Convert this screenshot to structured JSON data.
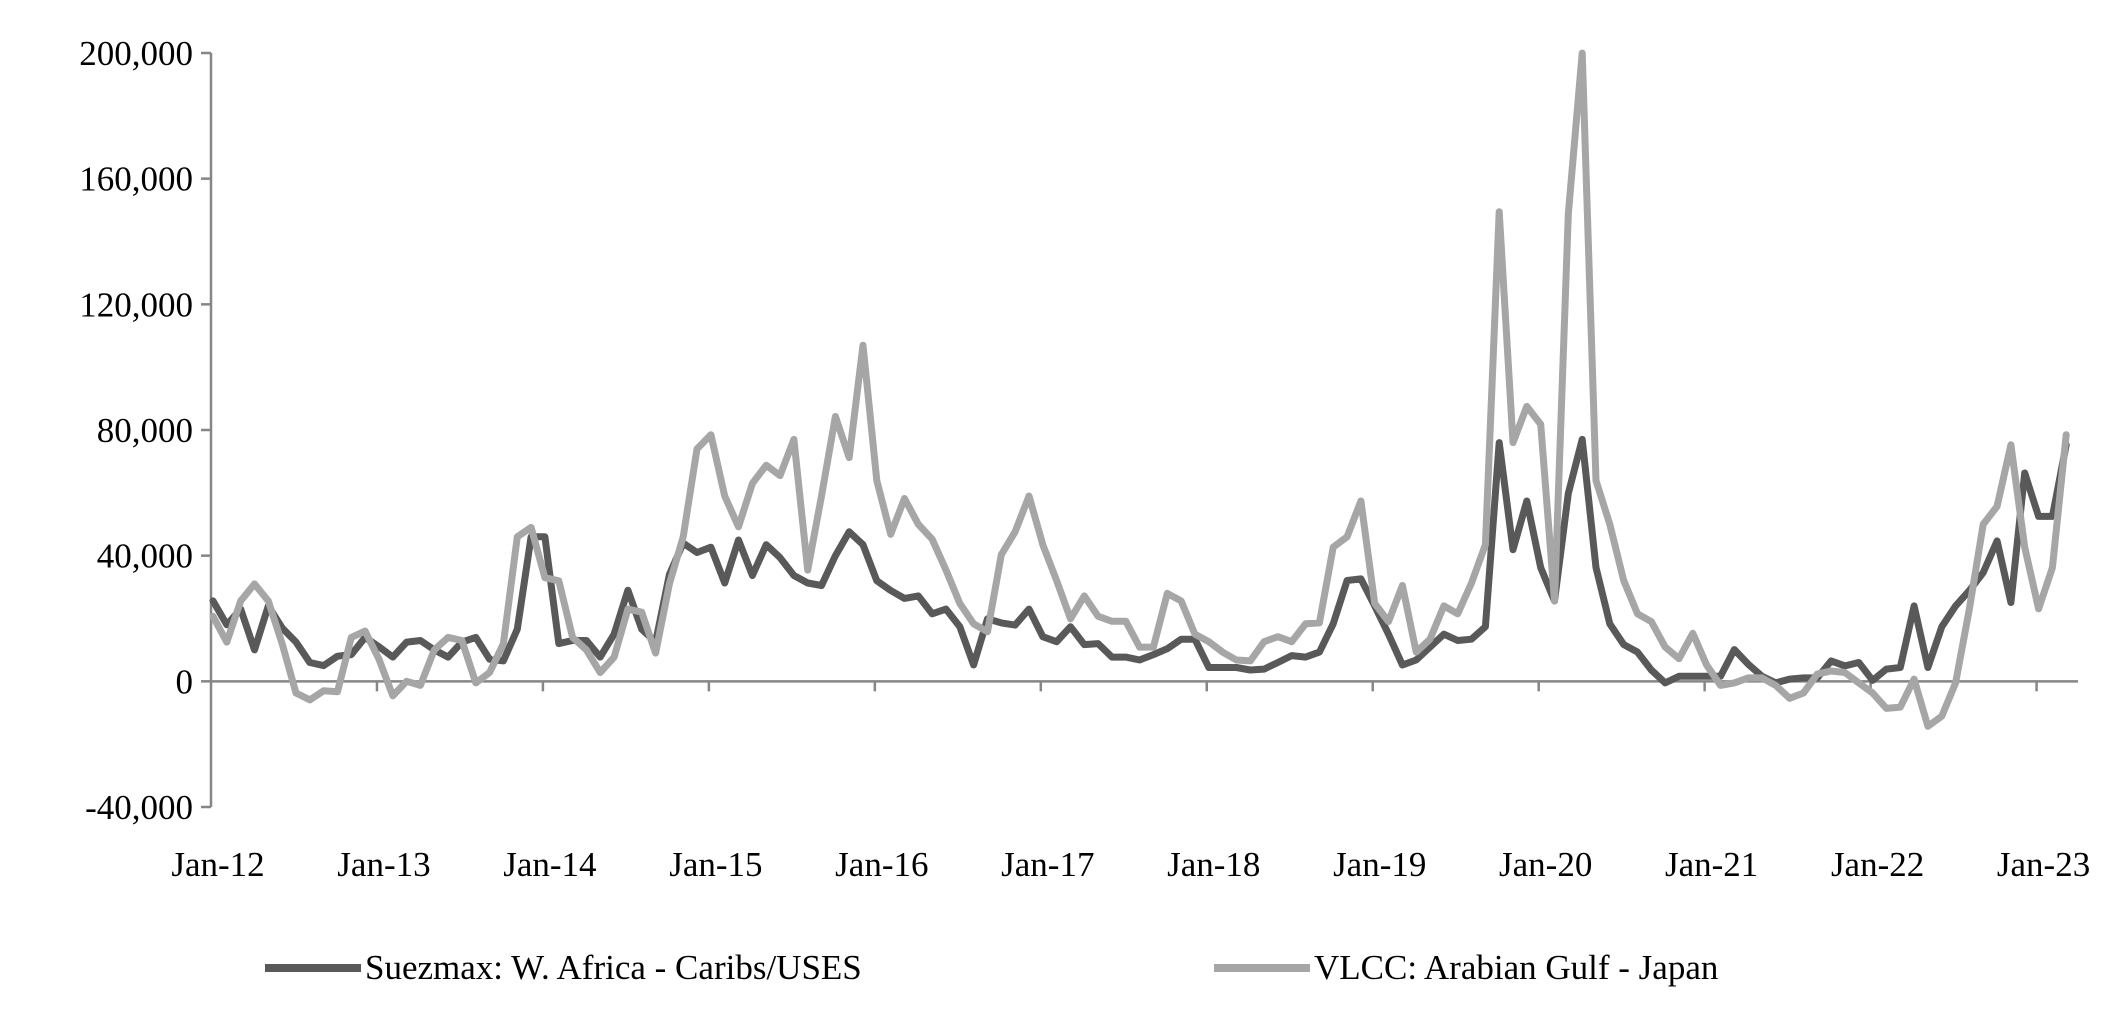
{
  "chart_data": {
    "type": "line",
    "title": "",
    "xlabel": "",
    "ylabel": "",
    "x_start": "Jan-12",
    "x_frequency": "monthly",
    "x_tick_labels": [
      "Jan-12",
      "Jan-13",
      "Jan-14",
      "Jan-15",
      "Jan-16",
      "Jan-17",
      "Jan-18",
      "Jan-19",
      "Jan-20",
      "Jan-21",
      "Jan-22",
      "Jan-23"
    ],
    "y_tick_labels": [
      "-40,000",
      "0",
      "40,000",
      "80,000",
      "120,000",
      "160,000",
      "200,000"
    ],
    "y_ticks": [
      -40000,
      0,
      40000,
      80000,
      120000,
      160000,
      200000
    ],
    "ylim": [
      -40000,
      200000
    ],
    "grid": false,
    "legend_position": "bottom",
    "series": [
      {
        "name": "Suezmax: W. Africa - Caribs/USES",
        "color": "#595959",
        "values": [
          25600,
          18000,
          23000,
          10000,
          24000,
          17000,
          12500,
          6000,
          5000,
          8000,
          8500,
          14000,
          11000,
          7700,
          12500,
          13000,
          10000,
          7700,
          12500,
          14000,
          7000,
          6500,
          16600,
          46000,
          46000,
          12000,
          13000,
          13000,
          7700,
          15000,
          29000,
          16600,
          12500,
          34000,
          44000,
          41000,
          42700,
          31300,
          45000,
          33700,
          43500,
          39400,
          33700,
          31300,
          30500,
          40000,
          47600,
          43500,
          32000,
          28900,
          26400,
          27200,
          21500,
          23000,
          17400,
          5200,
          19900,
          18600,
          17900,
          23000,
          14200,
          12600,
          17400,
          11700,
          12000,
          7700,
          7700,
          6800,
          8500,
          10400,
          13400,
          13400,
          4400,
          4400,
          4400,
          3600,
          3900,
          6000,
          8200,
          7700,
          9300,
          18300,
          32100,
          32600,
          24000,
          15000,
          5200,
          6800,
          10900,
          15000,
          13000,
          13400,
          17400,
          76000,
          41900,
          57400,
          36200,
          25600,
          59800,
          77000,
          36200,
          18300,
          11700,
          9300,
          3600,
          -500,
          1600,
          1600,
          1600,
          1600,
          10100,
          5500,
          1600,
          -500,
          700,
          1100,
          1100,
          6500,
          4900,
          6000,
          300,
          3900,
          4400,
          24000,
          4400,
          17400,
          24000,
          28900,
          34600,
          44700,
          25100,
          66300,
          52500,
          52500,
          75300
        ]
      },
      {
        "name": "VLCC: Arabian Gulf - Japan",
        "color": "#a6a6a6",
        "values": [
          20700,
          12500,
          25600,
          31000,
          25600,
          12000,
          -3700,
          -5900,
          -3000,
          -3300,
          14000,
          16000,
          7000,
          -4600,
          0,
          -1300,
          10000,
          14000,
          13000,
          -500,
          2800,
          12000,
          46000,
          49000,
          33000,
          32000,
          14000,
          10000,
          2800,
          7700,
          23000,
          22000,
          9000,
          31000,
          46000,
          74000,
          78500,
          59000,
          49200,
          63000,
          68800,
          65500,
          77000,
          35400,
          59000,
          84300,
          71200,
          107000,
          63900,
          46800,
          58200,
          50000,
          45200,
          35400,
          24800,
          18300,
          15800,
          40300,
          47600,
          59000,
          43500,
          32100,
          19900,
          27200,
          20700,
          19100,
          19100,
          10900,
          10900,
          28000,
          25600,
          15000,
          12600,
          9300,
          6800,
          6500,
          12600,
          14200,
          12600,
          18300,
          18600,
          42700,
          46000,
          57400,
          24800,
          19000,
          30500,
          9300,
          13400,
          24000,
          21500,
          31300,
          43500,
          149500,
          76000,
          87500,
          81800,
          25600,
          148700,
          200000,
          63900,
          50000,
          32100,
          21500,
          19000,
          10900,
          7200,
          15300,
          5200,
          -1300,
          -500,
          1100,
          1100,
          -1300,
          -5400,
          -3700,
          2300,
          3300,
          2800,
          -500,
          -3700,
          -8600,
          -8200,
          700,
          -14300,
          -11100,
          -500,
          23100,
          50000,
          55700,
          75300,
          42700,
          23100,
          36200,
          78500
        ]
      }
    ]
  }
}
